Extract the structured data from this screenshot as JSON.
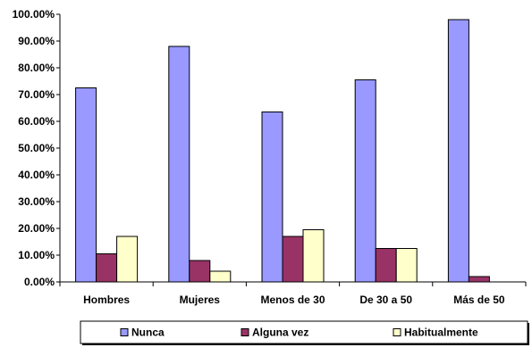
{
  "chart_data": {
    "type": "bar",
    "title": "",
    "xlabel": "",
    "ylabel": "",
    "categories": [
      "Hombres",
      "Mujeres",
      "Menos de 30",
      "De 30 a 50",
      "Más de 50"
    ],
    "series": [
      {
        "name": "Nunca",
        "color": "#9999ff",
        "values": [
          72.5,
          88.0,
          63.5,
          75.5,
          98.0
        ]
      },
      {
        "name": "Alguna vez",
        "color": "#993366",
        "values": [
          10.5,
          8.0,
          17.0,
          12.5,
          2.0
        ]
      },
      {
        "name": "Habitualmente",
        "color": "#ffffcc",
        "values": [
          17.0,
          4.0,
          19.5,
          12.5,
          0.0
        ]
      }
    ],
    "ylim": [
      0,
      100
    ],
    "yticks": [
      "0.00%",
      "10.00%",
      "20.00%",
      "30.00%",
      "40.00%",
      "50.00%",
      "60.00%",
      "70.00%",
      "80.00%",
      "90.00%",
      "100.00%"
    ],
    "grid": false,
    "legend": "bottom"
  }
}
